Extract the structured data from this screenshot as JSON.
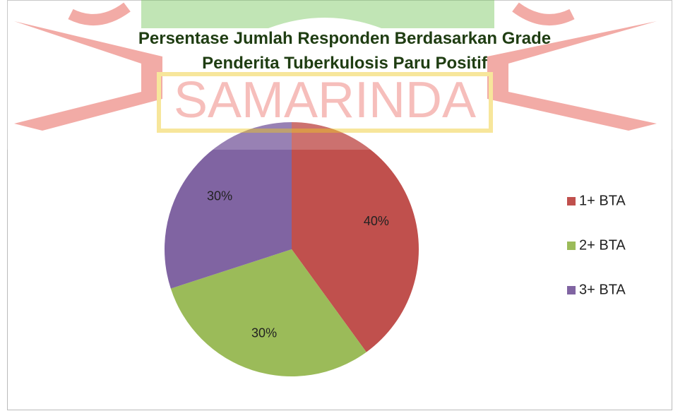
{
  "chart_data": {
    "type": "pie",
    "title": "Persentase Jumlah Responden Berdasarkan Grade Penderita Tuberkulosis Paru Positif",
    "watermark": "SAMARINDA",
    "categories": [
      "1+ BTA",
      "2+ BTA",
      "3+ BTA"
    ],
    "values": [
      40,
      30,
      30
    ],
    "value_labels": [
      "40%",
      "30%",
      "30%"
    ],
    "colors": [
      "#c0504d",
      "#9bbb59",
      "#8064a2"
    ],
    "legend": "right"
  }
}
